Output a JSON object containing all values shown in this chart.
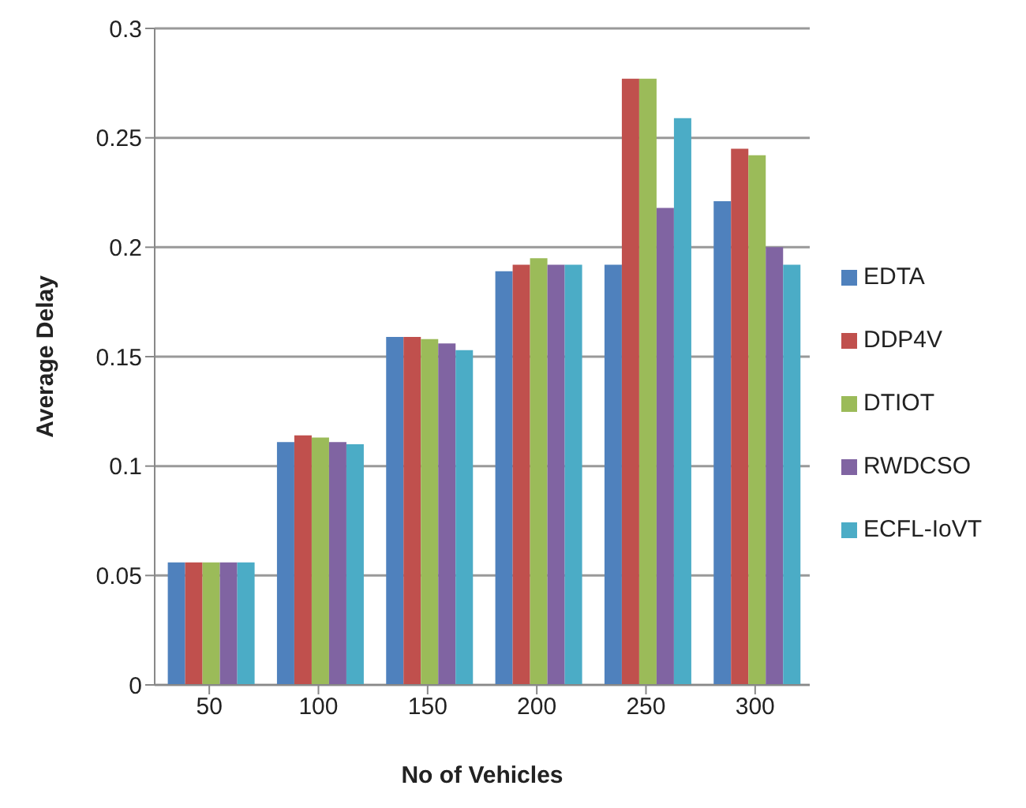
{
  "chart_data": {
    "type": "bar",
    "xlabel": "No of Vehicles",
    "ylabel": "Average Delay",
    "categories": [
      "50",
      "100",
      "150",
      "200",
      "250",
      "300"
    ],
    "series": [
      {
        "name": "EDTA",
        "color": "#4f81bd",
        "values": [
          0.056,
          0.111,
          0.159,
          0.189,
          0.192,
          0.221
        ]
      },
      {
        "name": "DDP4V",
        "color": "#c0504d",
        "values": [
          0.056,
          0.114,
          0.159,
          0.192,
          0.277,
          0.245
        ]
      },
      {
        "name": "DTIOT",
        "color": "#9bbb59",
        "values": [
          0.056,
          0.113,
          0.158,
          0.195,
          0.277,
          0.242
        ]
      },
      {
        "name": "RWDCSO",
        "color": "#8064a2",
        "values": [
          0.056,
          0.111,
          0.156,
          0.192,
          0.218,
          0.2
        ]
      },
      {
        "name": "ECFL-IoVT",
        "color": "#4bacc6",
        "values": [
          0.056,
          0.11,
          0.153,
          0.192,
          0.259,
          0.192
        ]
      }
    ],
    "ylim": [
      0,
      0.3
    ],
    "yticks": [
      0,
      0.05,
      0.1,
      0.15,
      0.2,
      0.25,
      0.3
    ],
    "grid": "y",
    "legend": "right"
  }
}
